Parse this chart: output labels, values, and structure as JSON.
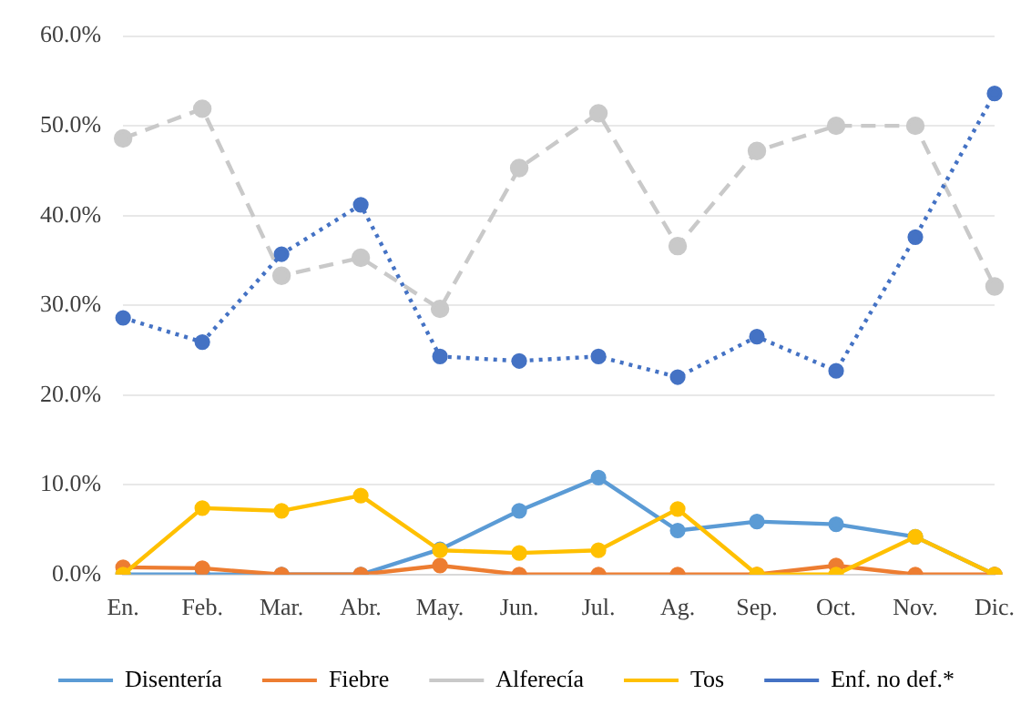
{
  "chart_data": {
    "type": "line",
    "categories": [
      "En.",
      "Feb.",
      "Mar.",
      "Abr.",
      "May.",
      "Jun.",
      "Jul.",
      "Ag.",
      "Sep.",
      "Oct.",
      "Nov.",
      "Dic."
    ],
    "series": [
      {
        "name": "Disentería",
        "color": "#5b9bd5",
        "line_style": "solid",
        "values": [
          0,
          0,
          0,
          0,
          2.8,
          7.1,
          10.8,
          4.9,
          5.9,
          5.6,
          4.2,
          0
        ]
      },
      {
        "name": "Fiebre",
        "color": "#ed7d31",
        "line_style": "solid",
        "values": [
          0.8,
          0.7,
          0,
          0,
          1.0,
          0,
          0,
          0,
          0,
          1.0,
          0,
          0
        ]
      },
      {
        "name": "Alferecía",
        "color": "#c9c9c9",
        "line_style": "dashed",
        "values": [
          48.6,
          51.9,
          33.3,
          35.3,
          29.6,
          45.3,
          51.4,
          36.6,
          47.2,
          50.0,
          50.0,
          32.1
        ]
      },
      {
        "name": "Tos",
        "color": "#ffc000",
        "line_style": "solid",
        "values": [
          0,
          7.4,
          7.1,
          8.8,
          2.7,
          2.4,
          2.7,
          7.3,
          0,
          0,
          4.2,
          0
        ]
      },
      {
        "name": "Enf. no def.*",
        "color": "#4472c4",
        "line_style": "dotted",
        "values": [
          28.6,
          25.9,
          35.7,
          41.2,
          24.3,
          23.8,
          24.3,
          22.0,
          26.5,
          22.7,
          37.6,
          53.6
        ]
      }
    ],
    "ylim": [
      0,
      60
    ],
    "yticks": [
      {
        "value": 0,
        "label": "0.0%"
      },
      {
        "value": 10,
        "label": "10.0%"
      },
      {
        "value": 20,
        "label": "20.0%"
      },
      {
        "value": 30,
        "label": "30.0%"
      },
      {
        "value": 40,
        "label": "40.0%"
      },
      {
        "value": 50,
        "label": "50.0%"
      },
      {
        "value": 60,
        "label": "60.0%"
      }
    ],
    "grid": "y",
    "legend": "bottom",
    "marker": "circle"
  }
}
